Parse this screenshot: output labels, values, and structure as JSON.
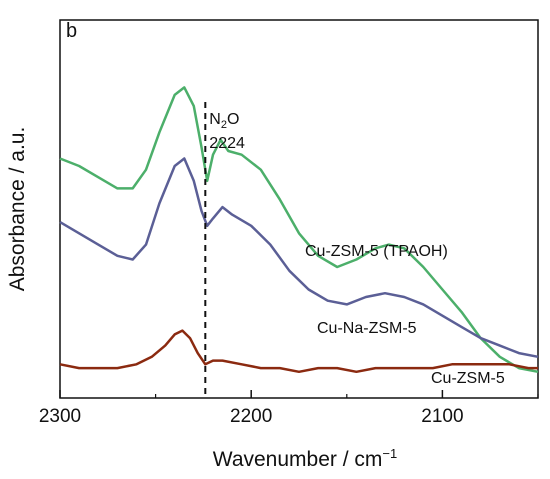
{
  "chart_data": {
    "type": "line",
    "panel_label": "b",
    "xlabel": "Wavenumber / cm",
    "xlabel_sup": "−1",
    "ylabel": "Absorbance / a.u.",
    "xlim": [
      2300,
      2050
    ],
    "x_reversed": true,
    "yaxis_ticks_shown": false,
    "grid": false,
    "legend": "none (series labeled inline)",
    "x_ticks": [
      2300,
      2200,
      2100
    ],
    "x_tick_labels": [
      "2300",
      "2200",
      "2100"
    ],
    "annotation": {
      "x": 2224,
      "line1": "N",
      "line1_sub": "2",
      "line1_rest": "O",
      "line2": "2224",
      "style": "dashed vertical line"
    },
    "series": [
      {
        "name": "Cu-ZSM-5 (TPAOH)",
        "color": "#4caf6a",
        "x": [
          2300,
          2290,
          2280,
          2270,
          2262,
          2255,
          2248,
          2240,
          2235,
          2230,
          2226,
          2223,
          2220,
          2216,
          2212,
          2205,
          2195,
          2185,
          2175,
          2165,
          2155,
          2145,
          2135,
          2128,
          2120,
          2110,
          2100,
          2090,
          2080,
          2070,
          2060,
          2050
        ],
        "y": [
          0.55,
          0.53,
          0.5,
          0.47,
          0.47,
          0.52,
          0.62,
          0.72,
          0.74,
          0.69,
          0.58,
          0.49,
          0.56,
          0.6,
          0.57,
          0.56,
          0.52,
          0.44,
          0.35,
          0.29,
          0.26,
          0.28,
          0.31,
          0.32,
          0.31,
          0.26,
          0.2,
          0.14,
          0.07,
          0.02,
          -0.01,
          -0.02
        ]
      },
      {
        "name": "Cu-Na-ZSM-5",
        "color": "#5b5f96",
        "x": [
          2300,
          2290,
          2280,
          2270,
          2262,
          2255,
          2248,
          2240,
          2235,
          2230,
          2226,
          2223,
          2220,
          2215,
          2210,
          2200,
          2190,
          2180,
          2170,
          2160,
          2150,
          2140,
          2130,
          2120,
          2110,
          2100,
          2090,
          2080,
          2070,
          2060,
          2050
        ],
        "y": [
          0.38,
          0.35,
          0.32,
          0.29,
          0.28,
          0.32,
          0.43,
          0.53,
          0.55,
          0.49,
          0.41,
          0.37,
          0.39,
          0.42,
          0.4,
          0.37,
          0.32,
          0.25,
          0.2,
          0.17,
          0.16,
          0.18,
          0.19,
          0.18,
          0.16,
          0.13,
          0.1,
          0.07,
          0.05,
          0.03,
          0.02
        ]
      },
      {
        "name": "Cu-ZSM-5",
        "color": "#8b2a10",
        "x": [
          2300,
          2290,
          2280,
          2270,
          2260,
          2252,
          2245,
          2240,
          2236,
          2232,
          2228,
          2224,
          2220,
          2215,
          2205,
          2195,
          2185,
          2175,
          2165,
          2155,
          2145,
          2135,
          2125,
          2115,
          2105,
          2095,
          2085,
          2075,
          2065,
          2055,
          2050
        ],
        "y": [
          0.0,
          -0.01,
          -0.01,
          -0.01,
          0.0,
          0.02,
          0.05,
          0.08,
          0.09,
          0.07,
          0.03,
          0.0,
          0.01,
          0.01,
          0.0,
          -0.01,
          -0.01,
          -0.02,
          -0.01,
          -0.01,
          -0.02,
          -0.01,
          -0.01,
          -0.01,
          -0.01,
          0.0,
          0.0,
          0.0,
          0.0,
          -0.01,
          -0.01
        ]
      }
    ]
  }
}
